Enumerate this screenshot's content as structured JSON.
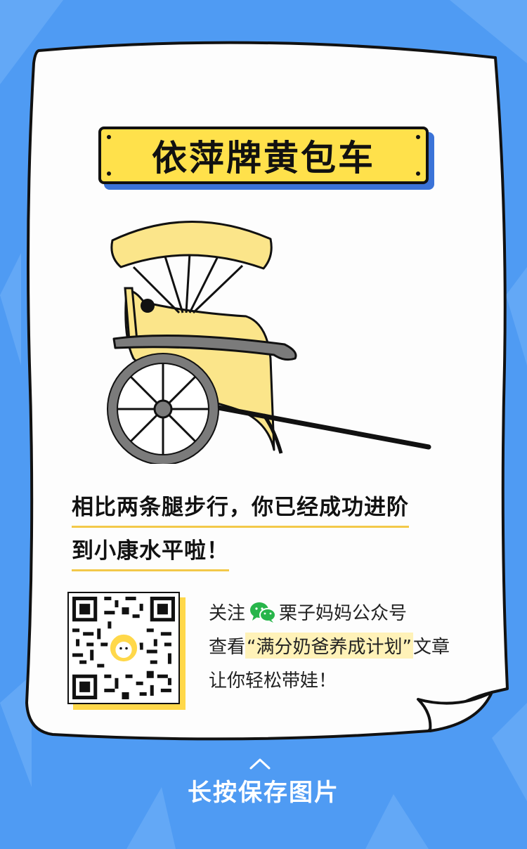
{
  "title": "依萍牌黄包车",
  "headline": {
    "line1": "相比两条腿步行，你已经成功进阶",
    "line2": "到小康水平啦！"
  },
  "follow": {
    "prefix": "关注",
    "account": "栗子妈妈公众号",
    "view_prefix": "查看",
    "article": "“满分奶爸养成计划”",
    "view_suffix": "文章",
    "tagline": "让你轻松带娃！"
  },
  "save_label": "长按保存图片",
  "icons": [
    "wechat-icon",
    "chevron-up-icon",
    "qr-code"
  ],
  "colors": {
    "background": "#4f9bf3",
    "title_plate": "#ffe14b",
    "title_shadow": "#3b73d8",
    "rickshaw_body": "#fbe58a",
    "underline": "#f3c94a",
    "wechat_green": "#27b54a"
  }
}
